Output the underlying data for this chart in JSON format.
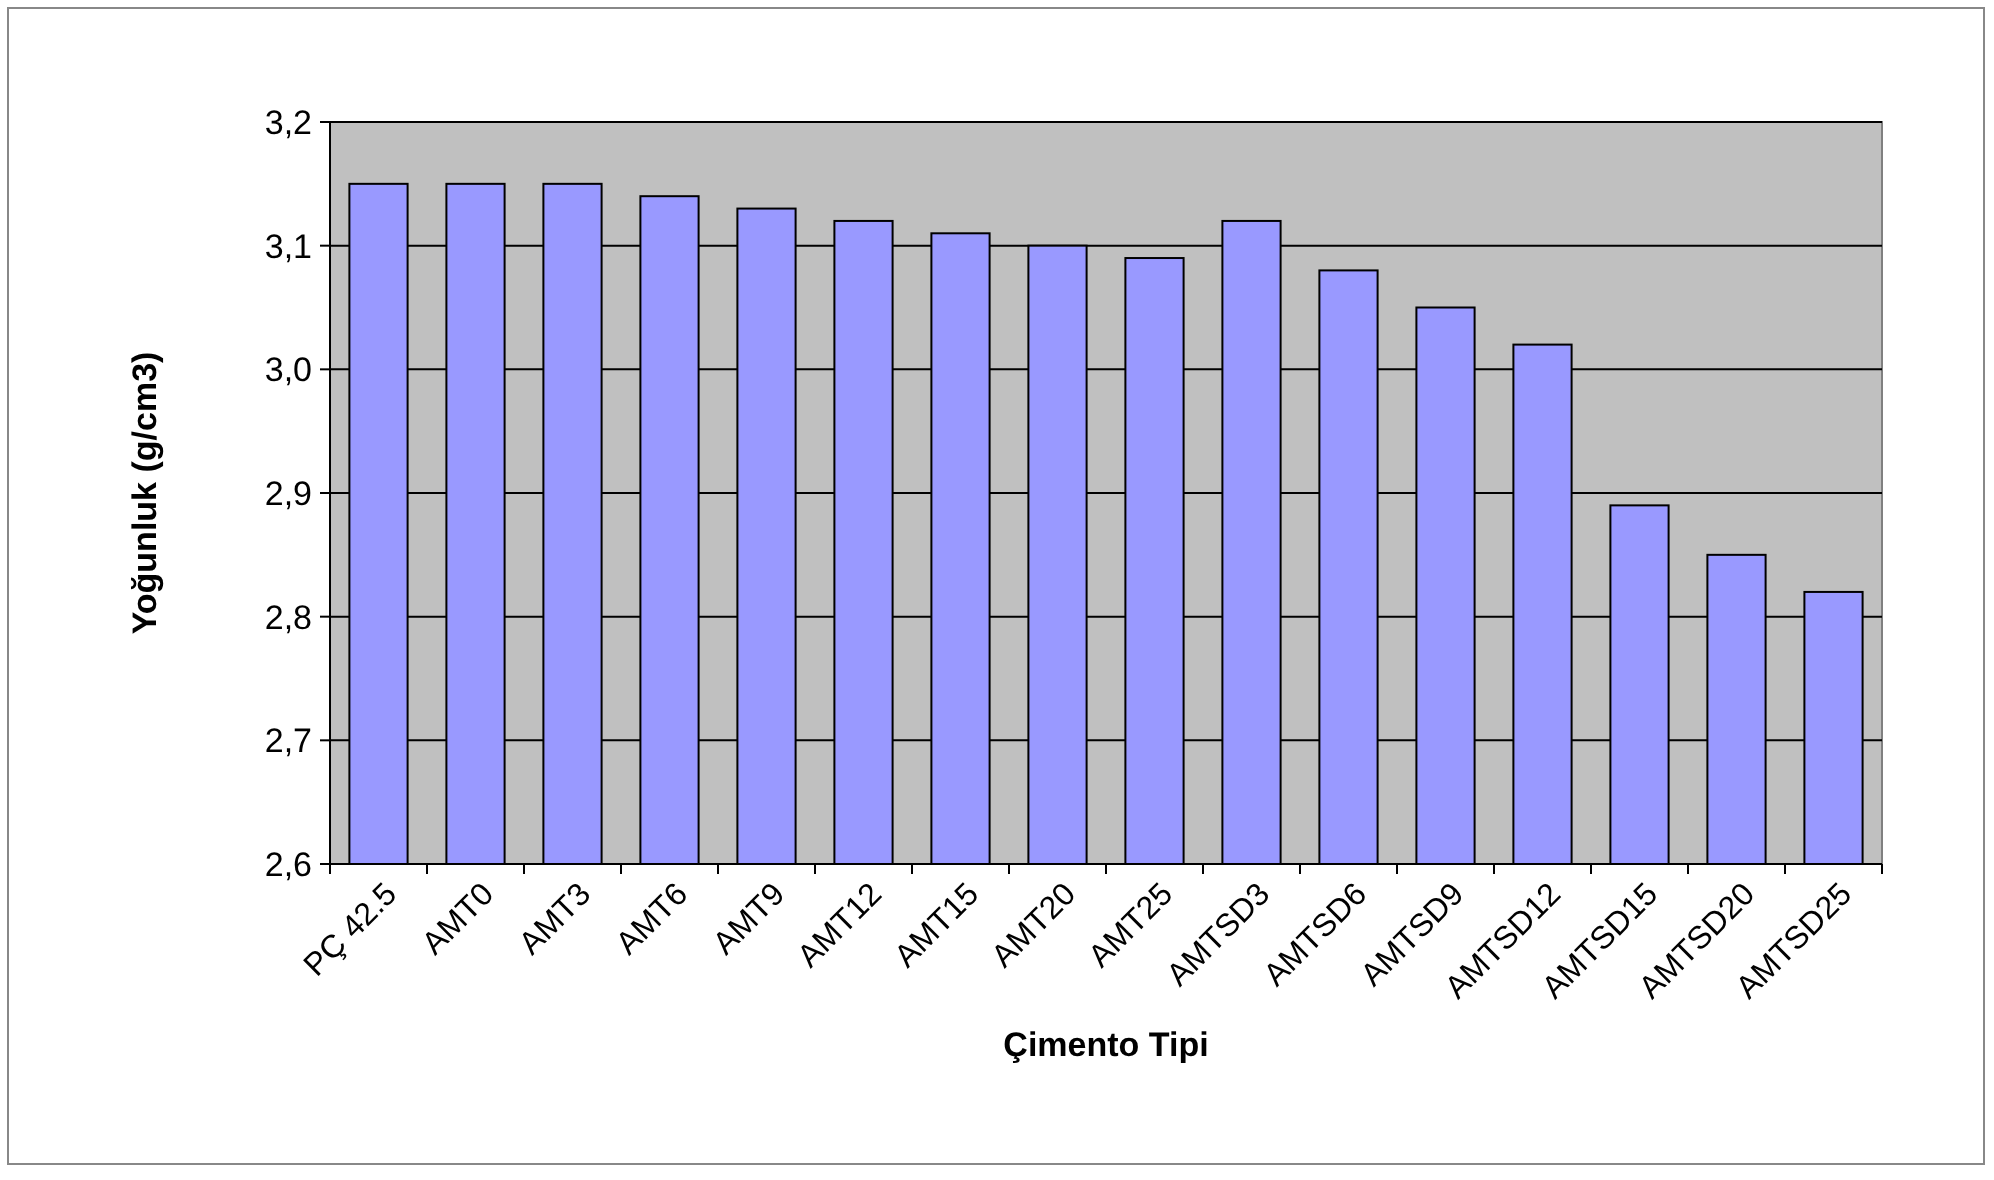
{
  "chart_data": {
    "type": "bar",
    "xlabel": "Çimento Tipi",
    "ylabel": "Yoğunluk (g/cm3)",
    "categories": [
      "PÇ 42.5",
      "AMT0",
      "AMT3",
      "AMT6",
      "AMT9",
      "AMT12",
      "AMT15",
      "AMT20",
      "AMT25",
      "AMTSD3",
      "AMTSD6",
      "AMTSD9",
      "AMTSD12",
      "AMTSD15",
      "AMTSD20",
      "AMTSD25"
    ],
    "values": [
      3.15,
      3.15,
      3.15,
      3.14,
      3.13,
      3.12,
      3.11,
      3.1,
      3.09,
      3.12,
      3.08,
      3.05,
      3.02,
      2.89,
      2.85,
      2.82
    ],
    "color": "#9999ff",
    "ylim": [
      2.6,
      3.2
    ],
    "yticks": [
      {
        "value": 2.6,
        "label": "2,6"
      },
      {
        "value": 2.7,
        "label": "2,7"
      },
      {
        "value": 2.8,
        "label": "2,8"
      },
      {
        "value": 2.9,
        "label": "2,9"
      },
      {
        "value": 3.0,
        "label": "3,0"
      },
      {
        "value": 3.1,
        "label": "3,1"
      },
      {
        "value": 3.2,
        "label": "3,2"
      }
    ],
    "grid": "y"
  }
}
